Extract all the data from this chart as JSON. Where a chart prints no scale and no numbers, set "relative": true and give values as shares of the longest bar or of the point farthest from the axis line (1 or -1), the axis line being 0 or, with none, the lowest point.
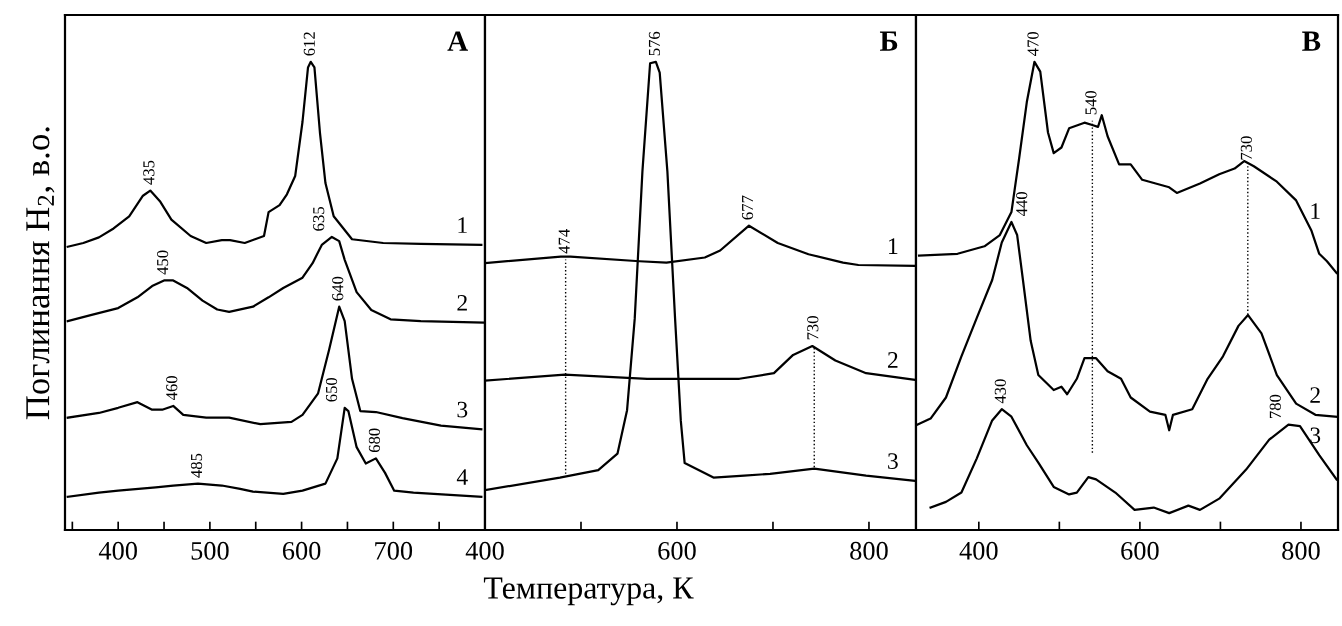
{
  "chart_data": [
    {
      "type": "line",
      "relative": true,
      "tick_labels": "x",
      "ylabel": "Поглинання H$_{2}$, в.о.",
      "xlim": [
        342,
        800
      ],
      "xticks": [
        {
          "value": 350,
          "label": null
        },
        400,
        {
          "value": 450,
          "label": null
        },
        500,
        {
          "value": 550,
          "label": null
        },
        600,
        {
          "value": 650,
          "label": null
        },
        700,
        {
          "value": 750,
          "label": null
        }
      ],
      "series": [
        {
          "name": "1",
          "color": "#000000",
          "x": [
            345,
            362,
            379,
            395,
            412,
            427,
            435,
            446,
            458,
            479,
            496,
            513,
            522,
            538,
            559,
            564,
            576,
            584,
            593,
            601,
            607,
            610,
            614,
            620,
            626,
            635,
            655,
            689,
            730,
            796
          ],
          "values": [
            0.605,
            0.613,
            0.625,
            0.644,
            0.67,
            0.714,
            0.725,
            0.701,
            0.663,
            0.628,
            0.613,
            0.619,
            0.619,
            0.613,
            0.628,
            0.679,
            0.694,
            0.717,
            0.756,
            0.872,
            0.988,
            1.0,
            0.988,
            0.849,
            0.741,
            0.67,
            0.621,
            0.613,
            0.611,
            0.609
          ]
        },
        {
          "name": "2",
          "color": "#000000",
          "x": [
            345,
            370,
            400,
            421,
            437,
            450,
            460,
            475,
            492,
            508,
            521,
            547,
            564,
            580,
            601,
            612,
            622,
            633,
            641,
            647,
            660,
            676,
            697,
            730,
            798
          ],
          "values": [
            0.446,
            0.459,
            0.474,
            0.497,
            0.521,
            0.533,
            0.533,
            0.517,
            0.49,
            0.471,
            0.466,
            0.477,
            0.497,
            0.517,
            0.539,
            0.57,
            0.609,
            0.626,
            0.617,
            0.577,
            0.508,
            0.47,
            0.45,
            0.446,
            0.443
          ]
        },
        {
          "name": "3",
          "color": "#000000",
          "x": [
            345,
            379,
            400,
            421,
            437,
            448,
            460,
            471,
            496,
            521,
            555,
            589,
            601,
            618,
            630,
            641,
            647,
            655,
            664,
            681,
            710,
            752,
            796
          ],
          "values": [
            0.24,
            0.25,
            0.261,
            0.273,
            0.257,
            0.257,
            0.265,
            0.246,
            0.24,
            0.24,
            0.226,
            0.231,
            0.246,
            0.292,
            0.385,
            0.477,
            0.446,
            0.323,
            0.254,
            0.252,
            0.239,
            0.223,
            0.215
          ]
        },
        {
          "name": "4",
          "color": "#000000",
          "x": [
            345,
            379,
            400,
            441,
            460,
            487,
            513,
            533,
            547,
            580,
            601,
            626,
            639,
            647,
            651,
            660,
            670,
            681,
            691,
            701,
            722,
            796
          ],
          "values": [
            0.071,
            0.08,
            0.084,
            0.091,
            0.095,
            0.099,
            0.095,
            0.088,
            0.082,
            0.077,
            0.084,
            0.099,
            0.153,
            0.261,
            0.254,
            0.177,
            0.142,
            0.153,
            0.122,
            0.084,
            0.08,
            0.071
          ]
        }
      ],
      "annotations": [
        "А",
        {
          "text": "435",
          "x": 435,
          "y": 0.725
        },
        {
          "text": "612",
          "x": 610,
          "y": 1.0
        },
        {
          "text": "450",
          "x": 450,
          "y": 0.533
        },
        {
          "text": "635",
          "x": 633,
          "y": 0.626
        },
        {
          "text": "460",
          "x": 460,
          "y": 0.265
        },
        {
          "text": "640",
          "x": 641,
          "y": 0.477
        },
        {
          "text": "485",
          "x": 487,
          "y": 0.099
        },
        {
          "text": "650",
          "x": 647,
          "y": 0.261
        },
        {
          "text": "680",
          "x": 681,
          "y": 0.153
        }
      ]
    },
    {
      "type": "line",
      "relative": true,
      "tick_labels": "x",
      "xlabel": "Температура, К",
      "xlim": [
        400,
        849
      ],
      "xticks": [
        400,
        {
          "value": 500,
          "label": null
        },
        600,
        {
          "value": 700,
          "label": null
        },
        800
      ],
      "series": [
        {
          "name": "1",
          "color": "#000000",
          "x": [
            400,
            479,
            489,
            561,
            589,
            629,
            645,
            675,
            705,
            737,
            773,
            789,
            847
          ],
          "values": [
            0.57,
            0.584,
            0.584,
            0.574,
            0.571,
            0.582,
            0.597,
            0.65,
            0.613,
            0.589,
            0.571,
            0.566,
            0.564
          ]
        },
        {
          "name": "2",
          "color": "#000000",
          "x": [
            400,
            483,
            569,
            665,
            701,
            721,
            741,
            765,
            797,
            847
          ],
          "values": [
            0.319,
            0.332,
            0.323,
            0.323,
            0.335,
            0.374,
            0.393,
            0.362,
            0.335,
            0.321
          ]
        },
        {
          "name": "3",
          "color": "#000000",
          "x": [
            400,
            478,
            518,
            538,
            548,
            556,
            564,
            572,
            578,
            582,
            590,
            598,
            604,
            608,
            638,
            670,
            697,
            743,
            797,
            847
          ],
          "values": [
            0.085,
            0.112,
            0.128,
            0.163,
            0.256,
            0.452,
            0.766,
            0.997,
            1.0,
            0.977,
            0.766,
            0.452,
            0.233,
            0.143,
            0.112,
            0.116,
            0.12,
            0.131,
            0.116,
            0.105
          ]
        },
        {
          "color": "#000000",
          "line_style": "dotted",
          "x": [
            484,
            484
          ],
          "values": [
            0.12,
            0.578
          ]
        },
        {
          "color": "#000000",
          "line_style": "dotted",
          "x": [
            743,
            743
          ],
          "values": [
            0.134,
            0.393
          ]
        }
      ],
      "annotations": [
        "Б",
        {
          "text": "576",
          "x": 578,
          "y": 1.0
        },
        {
          "text": "677",
          "x": 675,
          "y": 0.65
        },
        {
          "text": "730",
          "x": 743,
          "y": 0.393
        },
        {
          "text": "474",
          "x": 484,
          "y": 0.578
        }
      ]
    },
    {
      "type": "line",
      "relative": true,
      "tick_labels": "x",
      "xlim": [
        322,
        846
      ],
      "xticks": [
        400,
        {
          "value": 500,
          "label": null
        },
        600,
        {
          "value": 700,
          "label": null
        },
        800
      ],
      "series": [
        {
          "name": "1",
          "color": "#000000",
          "x": [
            325.8,
            373.6,
            407,
            426.1,
            440.5,
            450,
            459.6,
            469.1,
            476.3,
            485.9,
            493,
            502.6,
            512.1,
            531.2,
            540.8,
            548,
            552.7,
            559.9,
            574.2,
            588.6,
            602.9,
            636.4,
            645.9,
            674.6,
            698.5,
            717.6,
            729.5,
            741.5,
            770.1,
            794,
            813.1,
            822.7,
            832.3,
            844.2
          ],
          "values": [
            0.586,
            0.59,
            0.606,
            0.63,
            0.679,
            0.793,
            0.914,
            1.0,
            0.979,
            0.849,
            0.805,
            0.817,
            0.858,
            0.87,
            0.865,
            0.861,
            0.886,
            0.841,
            0.781,
            0.781,
            0.748,
            0.732,
            0.72,
            0.74,
            0.76,
            0.772,
            0.788,
            0.777,
            0.744,
            0.704,
            0.639,
            0.59,
            0.574,
            0.549
          ]
        },
        {
          "name": "2",
          "color": "#000000",
          "x": [
            323.4,
            340.1,
            359.2,
            378.4,
            397.5,
            416.6,
            428.5,
            440.5,
            447.6,
            454.8,
            464.4,
            473.9,
            493,
            502.6,
            509.7,
            521.7,
            531.2,
            545.6,
            559.9,
            576.6,
            588.6,
            612.5,
            631.6,
            636.4,
            641.1,
            665,
            684.1,
            703.2,
            722.4,
            734.3,
            751,
            770.1,
            794,
            817.9,
            844.2
          ],
          "values": [
            0.225,
            0.238,
            0.283,
            0.371,
            0.453,
            0.534,
            0.614,
            0.658,
            0.63,
            0.534,
            0.404,
            0.331,
            0.299,
            0.306,
            0.29,
            0.323,
            0.367,
            0.367,
            0.339,
            0.323,
            0.283,
            0.253,
            0.246,
            0.213,
            0.246,
            0.258,
            0.323,
            0.371,
            0.436,
            0.459,
            0.42,
            0.331,
            0.27,
            0.246,
            0.242
          ]
        },
        {
          "name": "3",
          "color": "#000000",
          "x": [
            340.1,
            359.2,
            378.4,
            397.5,
            416.6,
            428.5,
            440.5,
            459.6,
            473.9,
            493,
            512.1,
            521.7,
            536,
            545.6,
            569.5,
            593.4,
            617.2,
            636.4,
            660.2,
            674.6,
            698.5,
            731.9,
            760.6,
            784.5,
            798.8,
            822.7,
            844.2
          ],
          "values": [
            0.048,
            0.06,
            0.08,
            0.153,
            0.234,
            0.258,
            0.242,
            0.181,
            0.144,
            0.092,
            0.076,
            0.08,
            0.113,
            0.108,
            0.08,
            0.043,
            0.048,
            0.036,
            0.052,
            0.043,
            0.067,
            0.129,
            0.193,
            0.225,
            0.222,
            0.16,
            0.108
          ]
        },
        {
          "color": "#000000",
          "line_style": "dotted",
          "x": [
            541,
            541
          ],
          "values": [
            0.165,
            0.874
          ]
        },
        {
          "color": "#000000",
          "line_style": "dotted",
          "x": [
            734,
            734
          ],
          "values": [
            0.46,
            0.777
          ]
        }
      ],
      "annotations": [
        "В",
        {
          "text": "470",
          "x": 469.1,
          "y": 1.0
        },
        {
          "text": "540",
          "x": 541,
          "y": 0.874
        },
        {
          "text": "730",
          "x": 734,
          "y": 0.777
        },
        {
          "text": "440",
          "x": 440.5,
          "y": 0.658
        },
        {
          "text": "430",
          "x": 428.5,
          "y": 0.258
        },
        {
          "text": "780",
          "x": 784.5,
          "y": 0.225
        }
      ]
    }
  ]
}
